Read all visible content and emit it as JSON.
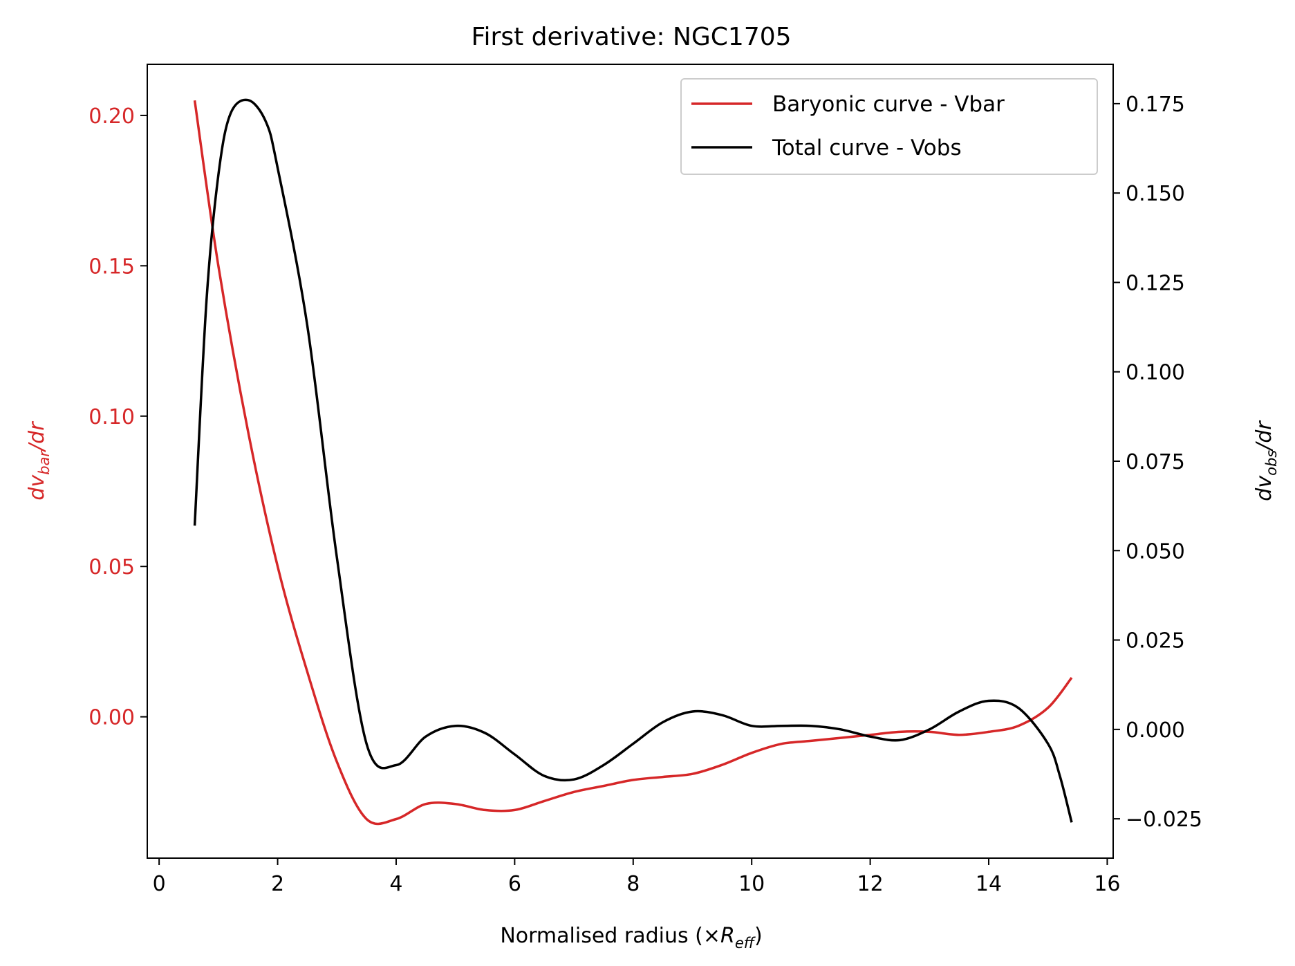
{
  "chart_data": {
    "type": "line",
    "title": "First derivative: NGC1705",
    "xlabel": "Normalised radius (×R_eff)",
    "ylabel_left": "dv_bar/dr",
    "ylabel_right": "dv_obs/dr",
    "xlim": [
      -0.2,
      16.1
    ],
    "ylim_left": [
      -0.047,
      0.217
    ],
    "ylim_right": [
      -0.036,
      0.186
    ],
    "x_ticks": [
      "0",
      "2",
      "4",
      "6",
      "8",
      "10",
      "12",
      "14",
      "16"
    ],
    "y_left_ticks": [
      "0.00",
      "0.05",
      "0.10",
      "0.15",
      "0.20"
    ],
    "y_right_ticks": [
      "−0.025",
      "0.000",
      "0.025",
      "0.050",
      "0.075",
      "0.100",
      "0.125",
      "0.150",
      "0.175"
    ],
    "legend_position": "top-right",
    "grid": false,
    "series": [
      {
        "name": "Baryonic curve - Vbar",
        "axis": "left",
        "color": "#d62728",
        "points": [
          [
            0.6,
            0.205
          ],
          [
            1.0,
            0.15
          ],
          [
            1.5,
            0.095
          ],
          [
            2.0,
            0.05
          ],
          [
            2.5,
            0.015
          ],
          [
            3.0,
            -0.015
          ],
          [
            3.5,
            -0.034
          ],
          [
            4.0,
            -0.034
          ],
          [
            4.5,
            -0.029
          ],
          [
            5.0,
            -0.029
          ],
          [
            5.5,
            -0.031
          ],
          [
            6.0,
            -0.031
          ],
          [
            6.5,
            -0.028
          ],
          [
            7.0,
            -0.025
          ],
          [
            7.5,
            -0.023
          ],
          [
            8.0,
            -0.021
          ],
          [
            8.5,
            -0.02
          ],
          [
            9.0,
            -0.019
          ],
          [
            9.5,
            -0.016
          ],
          [
            10.0,
            -0.012
          ],
          [
            10.5,
            -0.009
          ],
          [
            11.0,
            -0.008
          ],
          [
            11.5,
            -0.007
          ],
          [
            12.0,
            -0.006
          ],
          [
            12.5,
            -0.005
          ],
          [
            13.0,
            -0.005
          ],
          [
            13.5,
            -0.006
          ],
          [
            14.0,
            -0.005
          ],
          [
            14.5,
            -0.003
          ],
          [
            15.0,
            0.003
          ],
          [
            15.4,
            0.013
          ]
        ]
      },
      {
        "name": "Total curve - Vobs",
        "axis": "right",
        "color": "#000000",
        "points": [
          [
            0.6,
            0.057
          ],
          [
            0.8,
            0.12
          ],
          [
            1.0,
            0.155
          ],
          [
            1.2,
            0.172
          ],
          [
            1.5,
            0.176
          ],
          [
            1.8,
            0.17
          ],
          [
            2.0,
            0.157
          ],
          [
            2.5,
            0.113
          ],
          [
            3.0,
            0.048
          ],
          [
            3.5,
            -0.004
          ],
          [
            4.0,
            -0.01
          ],
          [
            4.5,
            -0.002
          ],
          [
            5.0,
            0.001
          ],
          [
            5.5,
            -0.001
          ],
          [
            6.0,
            -0.007
          ],
          [
            6.5,
            -0.013
          ],
          [
            7.0,
            -0.014
          ],
          [
            7.5,
            -0.01
          ],
          [
            8.0,
            -0.004
          ],
          [
            8.5,
            0.002
          ],
          [
            9.0,
            0.005
          ],
          [
            9.5,
            0.004
          ],
          [
            10.0,
            0.001
          ],
          [
            10.5,
            0.001
          ],
          [
            11.0,
            0.001
          ],
          [
            11.5,
            0.0
          ],
          [
            12.0,
            -0.002
          ],
          [
            12.5,
            -0.003
          ],
          [
            13.0,
            0.0
          ],
          [
            13.5,
            0.005
          ],
          [
            14.0,
            0.008
          ],
          [
            14.5,
            0.006
          ],
          [
            15.0,
            -0.004
          ],
          [
            15.2,
            -0.013
          ],
          [
            15.4,
            -0.026
          ]
        ]
      }
    ]
  }
}
